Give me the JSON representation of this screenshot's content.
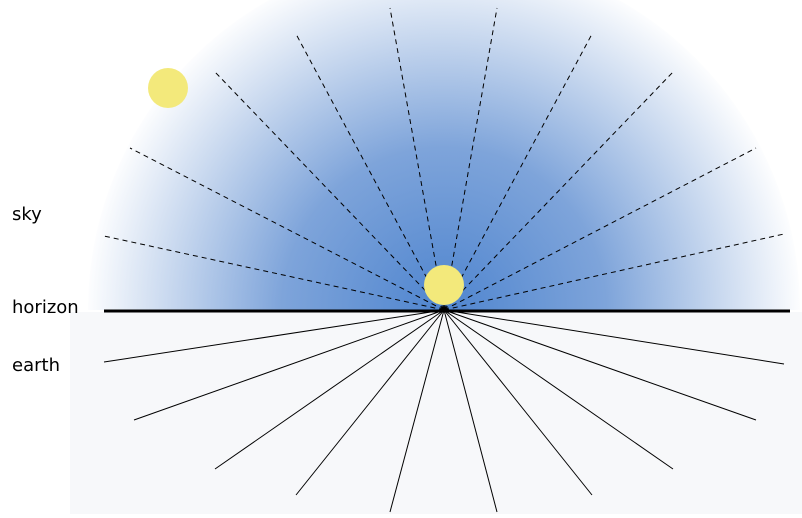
{
  "labels": {
    "sky": "sky",
    "horizon": "horizon",
    "earth": "earth"
  },
  "colors": {
    "sky_center": "#4f85cf",
    "sky_edge": "#ffffff",
    "ground": "#f7f8fa",
    "sun": "#f3e97b",
    "line": "#000000"
  },
  "icons": {
    "sun_overhead": "sun-icon",
    "sun_horizon": "sun-icon"
  }
}
